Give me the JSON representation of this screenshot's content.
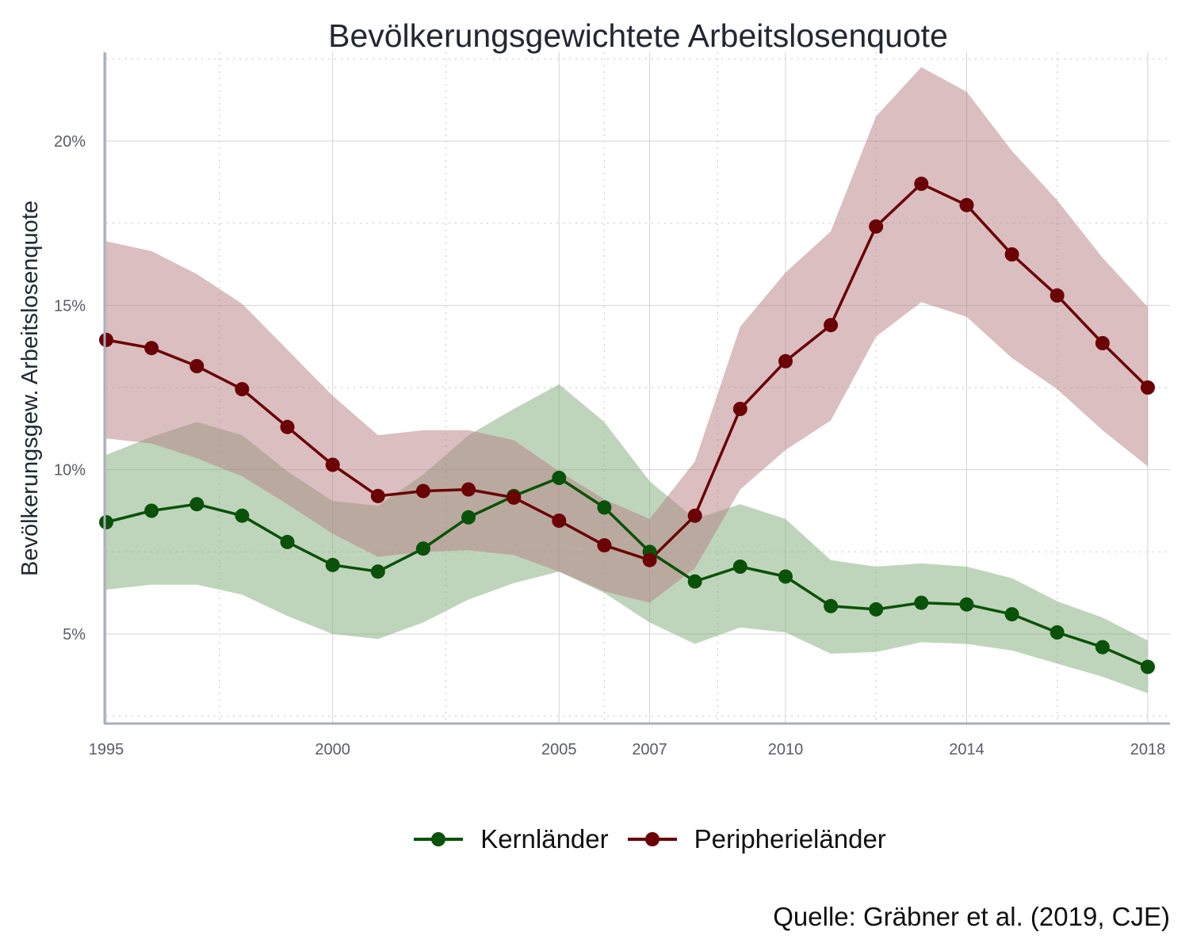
{
  "title": "Bevölkerungsgewichtete Arbeitslosenquote",
  "source": "Quelle: Gräbner et al. (2019, CJE)",
  "chart_data": {
    "type": "line",
    "title": "Bevölkerungsgewichtete Arbeitslosenquote",
    "xlabel": "",
    "ylabel": "Bevölkerungsgew. Arbeitslosenquote",
    "xlim": [
      1995,
      2018
    ],
    "ylim": [
      2.3,
      22.7
    ],
    "x_ticks": [
      1995,
      2000,
      2005,
      2007,
      2010,
      2014,
      2018
    ],
    "y_ticks": [
      5,
      10,
      15,
      20
    ],
    "y_tick_labels": [
      "5%",
      "10%",
      "15%",
      "20%"
    ],
    "grid": true,
    "legend_position": "bottom",
    "x": [
      1995,
      1996,
      1997,
      1998,
      1999,
      2000,
      2001,
      2002,
      2003,
      2004,
      2005,
      2006,
      2007,
      2008,
      2009,
      2010,
      2011,
      2012,
      2013,
      2014,
      2015,
      2016,
      2017,
      2018
    ],
    "series": [
      {
        "name": "Kernländer",
        "color": "#0a5209",
        "band_color": "#7fab77",
        "values": [
          8.4,
          8.75,
          8.95,
          8.6,
          7.8,
          7.1,
          6.9,
          7.6,
          8.55,
          9.2,
          9.75,
          8.85,
          7.5,
          6.6,
          7.05,
          6.75,
          5.85,
          5.75,
          5.95,
          5.9,
          5.6,
          5.05,
          4.6,
          4.0
        ],
        "lower": [
          6.35,
          6.5,
          6.5,
          6.2,
          5.55,
          5.0,
          4.85,
          5.35,
          6.05,
          6.55,
          6.9,
          6.25,
          5.35,
          4.7,
          5.2,
          5.05,
          4.4,
          4.45,
          4.75,
          4.7,
          4.5,
          4.1,
          3.7,
          3.2
        ],
        "upper": [
          10.45,
          11.0,
          11.45,
          11.05,
          9.95,
          9.05,
          8.9,
          9.85,
          11.05,
          11.85,
          12.6,
          11.45,
          9.65,
          8.5,
          8.95,
          8.5,
          7.25,
          7.05,
          7.15,
          7.05,
          6.7,
          6.0,
          5.5,
          4.8
        ]
      },
      {
        "name": "Peripherieländer",
        "color": "#6b0205",
        "band_color": "#b57d82",
        "values": [
          13.95,
          13.7,
          13.15,
          12.45,
          11.3,
          10.15,
          9.2,
          9.35,
          9.4,
          9.15,
          8.45,
          7.7,
          7.25,
          8.6,
          11.85,
          13.3,
          14.4,
          17.4,
          18.7,
          18.05,
          16.55,
          15.3,
          13.85,
          12.5
        ],
        "lower": [
          10.95,
          10.8,
          10.35,
          9.8,
          8.95,
          8.05,
          7.35,
          7.5,
          7.55,
          7.4,
          6.9,
          6.3,
          5.95,
          7.0,
          9.4,
          10.6,
          11.5,
          14.05,
          15.1,
          14.65,
          13.4,
          12.45,
          11.2,
          10.1
        ],
        "upper": [
          16.95,
          16.65,
          15.95,
          15.05,
          13.65,
          12.25,
          11.05,
          11.2,
          11.2,
          10.9,
          9.95,
          9.1,
          8.5,
          10.25,
          14.35,
          16.0,
          17.25,
          20.75,
          22.25,
          21.5,
          19.7,
          18.2,
          16.45,
          14.95
        ]
      }
    ]
  }
}
